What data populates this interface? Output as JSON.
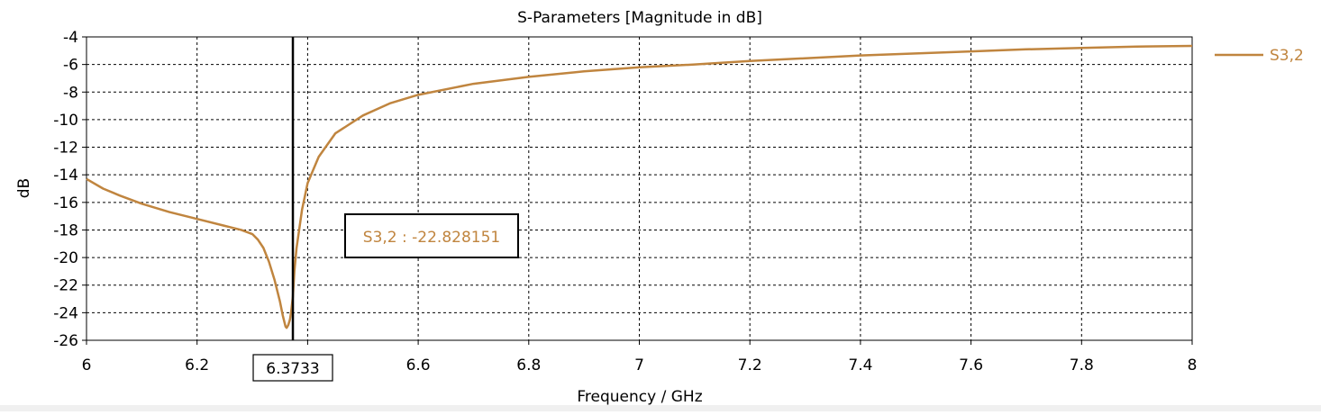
{
  "chart_data": {
    "type": "line",
    "title": "S-Parameters [Magnitude in dB]",
    "xlabel": "Frequency / GHz",
    "ylabel": "dB",
    "xlim": [
      6,
      8
    ],
    "ylim": [
      -26,
      -4
    ],
    "x_ticks": [
      6,
      6.2,
      6.4,
      6.6,
      6.8,
      7,
      7.2,
      7.4,
      7.6,
      7.8,
      8
    ],
    "x_tick_labels": [
      "6",
      "6.2",
      "",
      "6.6",
      "6.8",
      "7",
      "7.2",
      "7.4",
      "7.6",
      "7.8",
      "8"
    ],
    "y_ticks": [
      -4,
      -6,
      -8,
      -10,
      -12,
      -14,
      -16,
      -18,
      -20,
      -22,
      -24,
      -26
    ],
    "grid": true,
    "grid_style": "dashed",
    "legend_position": "right",
    "series": [
      {
        "name": "S3,2",
        "color": "#c0853f",
        "x": [
          6.0,
          6.03,
          6.06,
          6.1,
          6.15,
          6.2,
          6.25,
          6.28,
          6.3,
          6.31,
          6.32,
          6.33,
          6.34,
          6.35,
          6.355,
          6.36,
          6.362,
          6.365,
          6.368,
          6.37,
          6.3733,
          6.376,
          6.38,
          6.39,
          6.4,
          6.42,
          6.45,
          6.5,
          6.55,
          6.6,
          6.7,
          6.8,
          6.9,
          7.0,
          7.1,
          7.2,
          7.3,
          7.4,
          7.5,
          7.6,
          7.7,
          7.8,
          7.9,
          8.0
        ],
        "y": [
          -14.3,
          -15.0,
          -15.5,
          -16.1,
          -16.7,
          -17.2,
          -17.7,
          -18.0,
          -18.3,
          -18.7,
          -19.3,
          -20.3,
          -21.6,
          -23.2,
          -24.2,
          -25.0,
          -25.1,
          -24.9,
          -24.5,
          -24.0,
          -22.83,
          -21.0,
          -19.3,
          -16.5,
          -14.6,
          -12.7,
          -11.0,
          -9.7,
          -8.8,
          -8.2,
          -7.4,
          -6.9,
          -6.5,
          -6.2,
          -6.0,
          -5.75,
          -5.55,
          -5.35,
          -5.2,
          -5.05,
          -4.9,
          -4.8,
          -4.7,
          -4.65
        ]
      }
    ],
    "marker": {
      "x": 6.3733,
      "x_label": "6.3733",
      "annotation": "S3,2 : -22.828151",
      "value": -22.828151
    }
  }
}
